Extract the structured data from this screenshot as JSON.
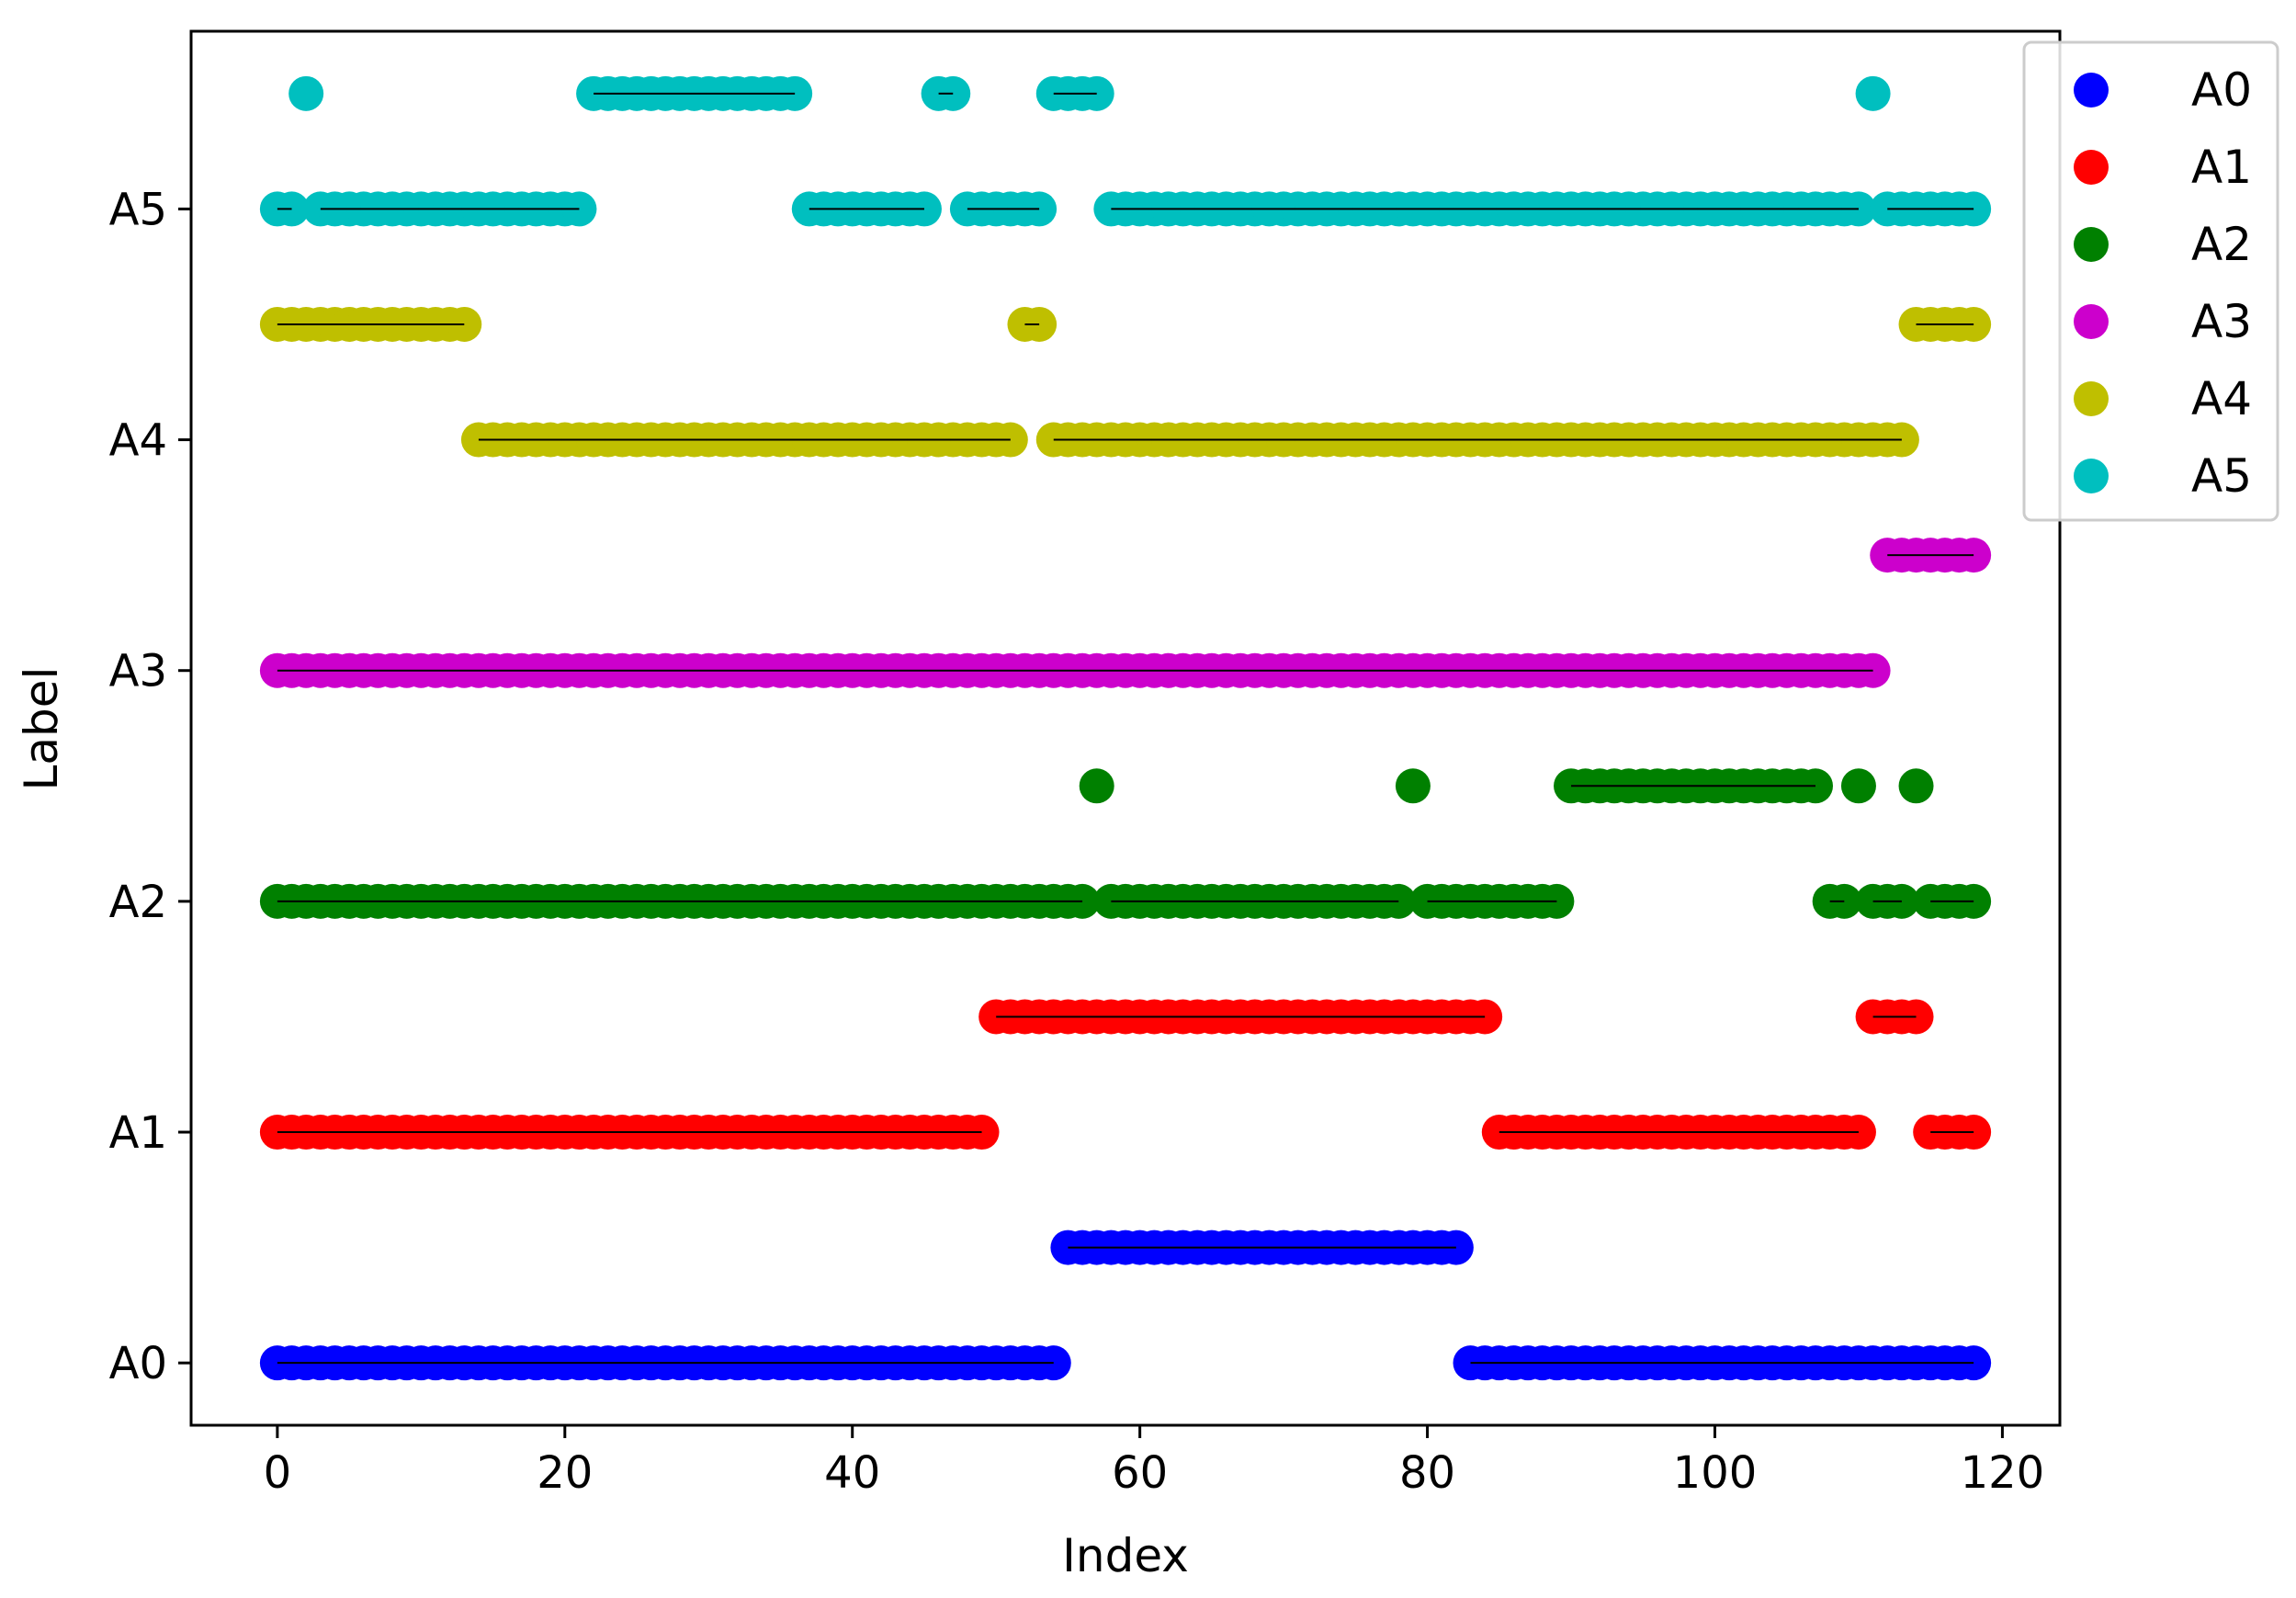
{
  "chart_data": {
    "type": "scatter",
    "xlabel": "Index",
    "ylabel": "Label",
    "xlim": [
      -6,
      124
    ],
    "ylim": [
      -0.27,
      5.77
    ],
    "xticks": [
      0,
      20,
      40,
      60,
      80,
      100,
      120
    ],
    "yticks": [
      {
        "value": 0,
        "label": "A0"
      },
      {
        "value": 1,
        "label": "A1"
      },
      {
        "value": 2,
        "label": "A2"
      },
      {
        "value": 3,
        "label": "A3"
      },
      {
        "value": 4,
        "label": "A4"
      },
      {
        "value": 5,
        "label": "A5"
      }
    ],
    "legend_placement": "upper-right-outside",
    "series": [
      {
        "name": "A0",
        "color": "#0000ff",
        "segments": [
          {
            "y": 0,
            "x_start": 0,
            "x_end": 54
          },
          {
            "y": 0.5,
            "x_start": 55,
            "x_end": 82
          },
          {
            "y": 0,
            "x_start": 83,
            "x_end": 118
          }
        ]
      },
      {
        "name": "A1",
        "color": "#ff0000",
        "segments": [
          {
            "y": 1,
            "x_start": 0,
            "x_end": 49
          },
          {
            "y": 1.5,
            "x_start": 50,
            "x_end": 84
          },
          {
            "y": 1,
            "x_start": 85,
            "x_end": 110
          },
          {
            "y": 1.5,
            "x_start": 111,
            "x_end": 114
          },
          {
            "y": 1,
            "x_start": 115,
            "x_end": 118
          }
        ]
      },
      {
        "name": "A2",
        "color": "#008000",
        "segments": [
          {
            "y": 2,
            "x_start": 0,
            "x_end": 56
          },
          {
            "y": 2.5,
            "x_start": 57,
            "x_end": 57
          },
          {
            "y": 2,
            "x_start": 58,
            "x_end": 78
          },
          {
            "y": 2.5,
            "x_start": 79,
            "x_end": 79
          },
          {
            "y": 2,
            "x_start": 80,
            "x_end": 89
          },
          {
            "y": 2.5,
            "x_start": 90,
            "x_end": 107
          },
          {
            "y": 2,
            "x_start": 108,
            "x_end": 109
          },
          {
            "y": 2.5,
            "x_start": 110,
            "x_end": 110
          },
          {
            "y": 2,
            "x_start": 111,
            "x_end": 113
          },
          {
            "y": 2.5,
            "x_start": 114,
            "x_end": 114
          },
          {
            "y": 2,
            "x_start": 115,
            "x_end": 118
          }
        ]
      },
      {
        "name": "A3",
        "color": "#cc00cc",
        "segments": [
          {
            "y": 3,
            "x_start": 0,
            "x_end": 111
          },
          {
            "y": 3.5,
            "x_start": 112,
            "x_end": 118
          }
        ]
      },
      {
        "name": "A4",
        "color": "#bfbf00",
        "segments": [
          {
            "y": 4.5,
            "x_start": 0,
            "x_end": 13
          },
          {
            "y": 4,
            "x_start": 14,
            "x_end": 51
          },
          {
            "y": 4.5,
            "x_start": 52,
            "x_end": 53
          },
          {
            "y": 4,
            "x_start": 54,
            "x_end": 113
          },
          {
            "y": 4.5,
            "x_start": 114,
            "x_end": 118
          }
        ]
      },
      {
        "name": "A5",
        "color": "#00bfbf",
        "segments": [
          {
            "y": 5,
            "x_start": 0,
            "x_end": 1
          },
          {
            "y": 5.5,
            "x_start": 2,
            "x_end": 2
          },
          {
            "y": 5,
            "x_start": 3,
            "x_end": 21
          },
          {
            "y": 5.5,
            "x_start": 22,
            "x_end": 36
          },
          {
            "y": 5,
            "x_start": 37,
            "x_end": 45
          },
          {
            "y": 5.5,
            "x_start": 46,
            "x_end": 47
          },
          {
            "y": 5,
            "x_start": 48,
            "x_end": 53
          },
          {
            "y": 5.5,
            "x_start": 54,
            "x_end": 57
          },
          {
            "y": 5,
            "x_start": 58,
            "x_end": 110
          },
          {
            "y": 5.5,
            "x_start": 111,
            "x_end": 111
          },
          {
            "y": 5,
            "x_start": 112,
            "x_end": 118
          }
        ]
      }
    ]
  }
}
